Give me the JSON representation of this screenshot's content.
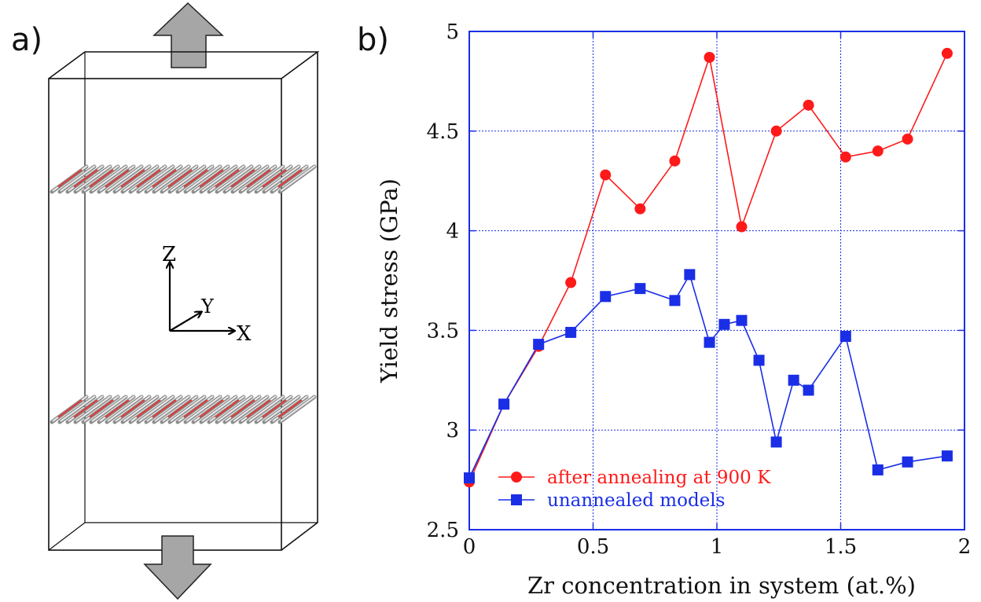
{
  "panel_a": {
    "label": "a)",
    "axes": {
      "z": "Z",
      "y": "Y",
      "x": "X"
    }
  },
  "panel_b": {
    "label": "b)"
  },
  "colors": {
    "annealed": "#ff1a1a",
    "unannealed": "#1a2ee6",
    "grid": "#1a2ee6",
    "arrow_fill": "#a6a6a6"
  },
  "chart_data": {
    "type": "line",
    "title": "",
    "xlabel": "Zr concentration in system (at.%)",
    "ylabel": "Yield stress (GPa)",
    "xlim": [
      0,
      2
    ],
    "ylim": [
      2.5,
      5
    ],
    "xticks": [
      "0",
      "0.5",
      "1",
      "1.5",
      "2"
    ],
    "yticks": [
      "2.5",
      "3",
      "3.5",
      "4",
      "4.5",
      "5"
    ],
    "grid": true,
    "legend_position": "bottom-left",
    "series": [
      {
        "name": "after annealing at 900 K",
        "marker": "circle",
        "x": [
          0,
          0.14,
          0.28,
          0.41,
          0.55,
          0.69,
          0.83,
          0.97,
          1.1,
          1.24,
          1.37,
          1.52,
          1.65,
          1.77,
          1.93
        ],
        "y": [
          2.74,
          3.13,
          3.42,
          3.74,
          4.28,
          4.11,
          4.35,
          4.87,
          4.02,
          4.5,
          4.63,
          4.37,
          4.4,
          4.46,
          4.89
        ]
      },
      {
        "name": "unannealed models",
        "marker": "square",
        "x": [
          0,
          0.14,
          0.28,
          0.41,
          0.55,
          0.69,
          0.83,
          0.89,
          0.97,
          1.03,
          1.1,
          1.17,
          1.24,
          1.31,
          1.37,
          1.52,
          1.65,
          1.77,
          1.93
        ],
        "y": [
          2.76,
          3.13,
          3.43,
          3.49,
          3.67,
          3.71,
          3.65,
          3.78,
          3.44,
          3.53,
          3.55,
          3.35,
          2.94,
          3.25,
          3.2,
          3.47,
          2.8,
          2.84,
          2.87
        ]
      }
    ]
  }
}
